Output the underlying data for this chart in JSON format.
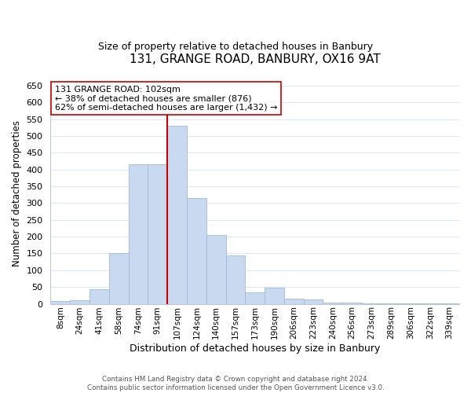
{
  "title": "131, GRANGE ROAD, BANBURY, OX16 9AT",
  "subtitle": "Size of property relative to detached houses in Banbury",
  "xlabel": "Distribution of detached houses by size in Banbury",
  "ylabel": "Number of detached properties",
  "bar_labels": [
    "8sqm",
    "24sqm",
    "41sqm",
    "58sqm",
    "74sqm",
    "91sqm",
    "107sqm",
    "124sqm",
    "140sqm",
    "157sqm",
    "173sqm",
    "190sqm",
    "206sqm",
    "223sqm",
    "240sqm",
    "256sqm",
    "273sqm",
    "289sqm",
    "306sqm",
    "322sqm",
    "339sqm"
  ],
  "bar_values": [
    8,
    10,
    44,
    150,
    416,
    416,
    530,
    314,
    205,
    143,
    35,
    49,
    15,
    14,
    4,
    3,
    1,
    1,
    1,
    1,
    1
  ],
  "bar_color": "#c9d9f0",
  "bar_edge_color": "#a0b8d8",
  "highlight_bar_index": 6,
  "highlight_line_color": "#cc0000",
  "annotation_line1": "131 GRANGE ROAD: 102sqm",
  "annotation_line2": "← 38% of detached houses are smaller (876)",
  "annotation_line3": "62% of semi-detached houses are larger (1,432) →",
  "annotation_box_color": "#ffffff",
  "annotation_box_edge": "#cc0000",
  "ylim": [
    0,
    660
  ],
  "yticks": [
    0,
    50,
    100,
    150,
    200,
    250,
    300,
    350,
    400,
    450,
    500,
    550,
    600,
    650
  ],
  "footer_line1": "Contains HM Land Registry data © Crown copyright and database right 2024.",
  "footer_line2": "Contains public sector information licensed under the Open Government Licence v3.0.",
  "bg_color": "#ffffff",
  "grid_color": "#dce8f5",
  "bar_width": 1.0
}
